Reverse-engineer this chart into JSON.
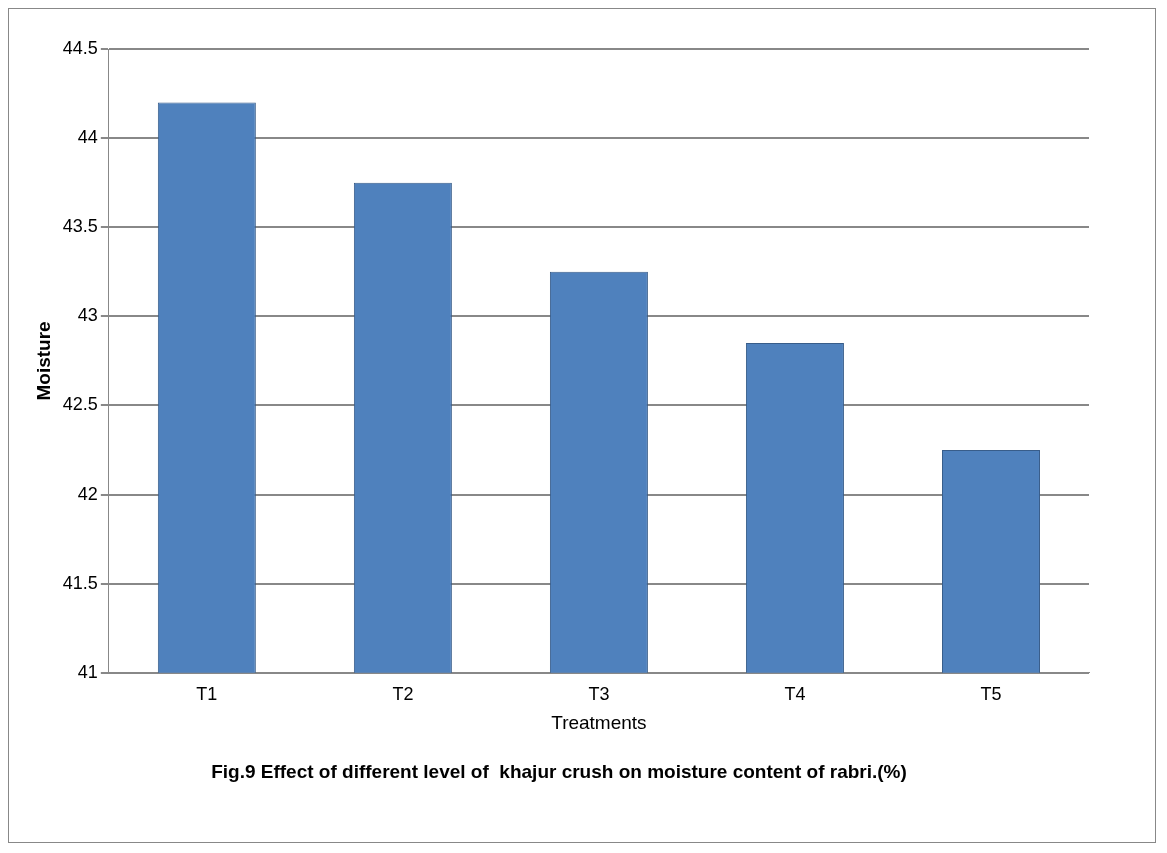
{
  "chart_data": {
    "type": "bar",
    "title": "Fig.9 Effect of different level of  khajur crush on moisture content of rabri.(%)",
    "xlabel": "Treatments",
    "ylabel": "Moisture",
    "categories": [
      "T1",
      "T2",
      "T3",
      "T4",
      "T5"
    ],
    "values": [
      44.2,
      43.75,
      43.25,
      42.85,
      42.25
    ],
    "color": "#4f81bd",
    "ylim": [
      41,
      44.5
    ],
    "yticks": [
      41,
      41.5,
      42,
      42.5,
      43,
      43.5,
      44,
      44.5
    ],
    "grid": "y"
  }
}
